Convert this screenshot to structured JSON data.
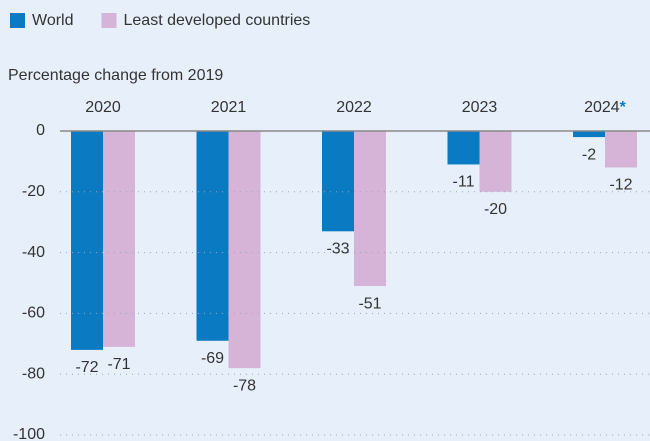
{
  "chart_data": {
    "type": "bar",
    "subtitle": "Percentage change from 2019",
    "categories": [
      "2020",
      "2021",
      "2022",
      "2023",
      "2024*"
    ],
    "series": [
      {
        "name": "World",
        "color": "#0a7ac2",
        "values": [
          -72,
          -69,
          -33,
          -11,
          -2
        ]
      },
      {
        "name": "Least developed countries",
        "color": "#d6b4d7",
        "values": [
          -71,
          -78,
          -51,
          -20,
          -12
        ]
      }
    ],
    "ylim": [
      -100,
      0
    ],
    "yticks": [
      0,
      -20,
      -40,
      -60,
      -80,
      -100
    ],
    "grid": true,
    "legend": "top"
  }
}
